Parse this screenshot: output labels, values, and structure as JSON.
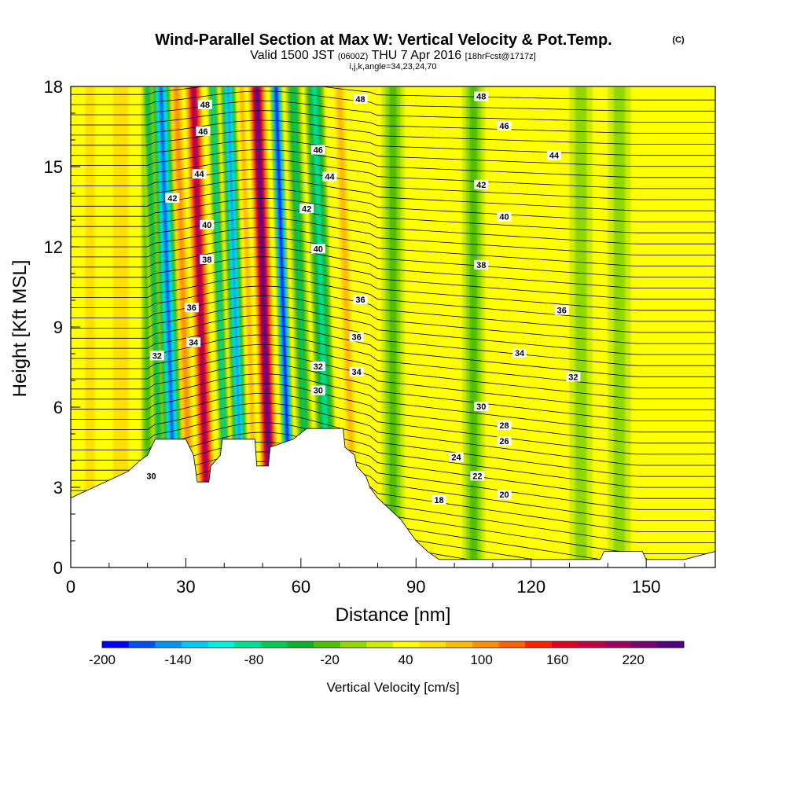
{
  "title": {
    "main": "Wind-Parallel Section at Max W: Vertical Velocity & Pot.Temp.",
    "mark": "(C)",
    "valid_prefix": "Valid 1500 JST",
    "valid_utc": "(0600Z)",
    "valid_date": "THU 7 Apr 2016",
    "fcst": "[18hrFcst@1717z]",
    "params": "i,j,k,angle=34,23,24,70"
  },
  "chart_data": {
    "type": "heatmap",
    "xlabel": "Distance [nm]",
    "ylabel": "Height [Kft MSL]",
    "xlim": [
      0,
      168
    ],
    "ylim": [
      0,
      18
    ],
    "x_ticks": [
      0,
      30,
      60,
      90,
      120,
      150
    ],
    "x_tick_labels": [
      "0",
      "30",
      "60",
      "90",
      "120",
      "150"
    ],
    "y_ticks": [
      0,
      3,
      6,
      9,
      12,
      15,
      18
    ],
    "y_tick_labels": [
      "0",
      "3",
      "6",
      "9",
      "12",
      "15",
      "18"
    ],
    "colorbar": {
      "label": "Vertical Velocity [cm/s]",
      "min": -200,
      "max": 240,
      "step": 20,
      "tick_labels": [
        "-200",
        "-140",
        "-80",
        "-20",
        "40",
        "100",
        "160",
        "220"
      ],
      "colors": [
        "#0000ff",
        "#0050f0",
        "#0096f0",
        "#00c8f0",
        "#00f0e0",
        "#00e090",
        "#00cc55",
        "#10b030",
        "#50c000",
        "#90d800",
        "#ccec00",
        "#ffff00",
        "#ffe000",
        "#ffbb00",
        "#ff9000",
        "#ff6000",
        "#ff2000",
        "#e00020",
        "#c00040",
        "#a00060",
        "#780070",
        "#500080"
      ]
    },
    "background_value": 20,
    "vertical_velocity_bands": [
      {
        "x": 5,
        "w": 2.5,
        "v": 50
      },
      {
        "x": 13,
        "w": 4,
        "v": 52
      },
      {
        "x": 20,
        "w": 1.5,
        "v": -25
      },
      {
        "x": 24,
        "w": 1.5,
        "v": -80
      },
      {
        "x": 27.5,
        "w": 2.5,
        "v": -165
      },
      {
        "x": 31.5,
        "w": 1.5,
        "v": 80
      },
      {
        "x": 36,
        "w": 2.5,
        "v": 190
      },
      {
        "x": 41,
        "w": 1.5,
        "v": -90
      },
      {
        "x": 45,
        "w": 2.2,
        "v": -150
      },
      {
        "x": 48.5,
        "w": 1.3,
        "v": 70
      },
      {
        "x": 52.5,
        "w": 2.5,
        "v": 235
      },
      {
        "x": 57.5,
        "w": 1.6,
        "v": -230
      },
      {
        "x": 62,
        "w": 2.2,
        "v": -70
      },
      {
        "x": 67.5,
        "w": 2.5,
        "v": -85
      },
      {
        "x": 74,
        "w": 2,
        "v": 70
      },
      {
        "x": 84,
        "w": 3,
        "v": -30
      },
      {
        "x": 105,
        "w": 3,
        "v": -30
      },
      {
        "x": 133,
        "w": 3,
        "v": -15
      },
      {
        "x": 143,
        "w": 3,
        "v": -15
      }
    ],
    "theta_contour_labels": [
      {
        "x": 21,
        "z": 3.4,
        "t": "30"
      },
      {
        "x": 22.5,
        "z": 7.9,
        "t": "32"
      },
      {
        "x": 32,
        "z": 8.4,
        "t": "34"
      },
      {
        "x": 31.5,
        "z": 9.7,
        "t": "36"
      },
      {
        "x": 35.5,
        "z": 11.5,
        "t": "38"
      },
      {
        "x": 35.5,
        "z": 12.8,
        "t": "40"
      },
      {
        "x": 26.5,
        "z": 13.8,
        "t": "42"
      },
      {
        "x": 33.5,
        "z": 14.7,
        "t": "44"
      },
      {
        "x": 34.5,
        "z": 16.3,
        "t": "46"
      },
      {
        "x": 35,
        "z": 17.3,
        "t": "48"
      },
      {
        "x": 64.5,
        "z": 6.6,
        "t": "30"
      },
      {
        "x": 64.5,
        "z": 7.5,
        "t": "32"
      },
      {
        "x": 74.5,
        "z": 7.3,
        "t": "34"
      },
      {
        "x": 74.5,
        "z": 8.6,
        "t": "36"
      },
      {
        "x": 75.5,
        "z": 10.0,
        "t": "36"
      },
      {
        "x": 64.5,
        "z": 11.9,
        "t": "40"
      },
      {
        "x": 61.5,
        "z": 13.4,
        "t": "42"
      },
      {
        "x": 67.5,
        "z": 14.6,
        "t": "44"
      },
      {
        "x": 64.5,
        "z": 15.6,
        "t": "46"
      },
      {
        "x": 75.5,
        "z": 17.5,
        "t": "48"
      },
      {
        "x": 96,
        "z": 2.5,
        "t": "18"
      },
      {
        "x": 113,
        "z": 2.7,
        "t": "20"
      },
      {
        "x": 106,
        "z": 3.4,
        "t": "22"
      },
      {
        "x": 100.5,
        "z": 4.1,
        "t": "24"
      },
      {
        "x": 113,
        "z": 4.7,
        "t": "26"
      },
      {
        "x": 113,
        "z": 5.3,
        "t": "28"
      },
      {
        "x": 107,
        "z": 6.0,
        "t": "30"
      },
      {
        "x": 131,
        "z": 7.1,
        "t": "32"
      },
      {
        "x": 117,
        "z": 8.0,
        "t": "34"
      },
      {
        "x": 128,
        "z": 9.6,
        "t": "36"
      },
      {
        "x": 107,
        "z": 11.3,
        "t": "38"
      },
      {
        "x": 113,
        "z": 13.1,
        "t": "40"
      },
      {
        "x": 107,
        "z": 14.3,
        "t": "42"
      },
      {
        "x": 126,
        "z": 15.4,
        "t": "44"
      },
      {
        "x": 113,
        "z": 16.5,
        "t": "46"
      },
      {
        "x": 107,
        "z": 17.6,
        "t": "48"
      }
    ],
    "terrain": [
      {
        "x": 0,
        "z": 2.6
      },
      {
        "x": 3,
        "z": 2.8
      },
      {
        "x": 6,
        "z": 3.0
      },
      {
        "x": 9,
        "z": 3.2
      },
      {
        "x": 12,
        "z": 3.4
      },
      {
        "x": 15,
        "z": 3.6
      },
      {
        "x": 18,
        "z": 4.0
      },
      {
        "x": 20,
        "z": 4.2
      },
      {
        "x": 22,
        "z": 4.8
      },
      {
        "x": 30,
        "z": 4.8
      },
      {
        "x": 32,
        "z": 4.2
      },
      {
        "x": 33,
        "z": 3.2
      },
      {
        "x": 36,
        "z": 3.2
      },
      {
        "x": 36.5,
        "z": 3.8
      },
      {
        "x": 39,
        "z": 4.2
      },
      {
        "x": 39.5,
        "z": 4.8
      },
      {
        "x": 48,
        "z": 4.8
      },
      {
        "x": 48.5,
        "z": 3.8
      },
      {
        "x": 51.5,
        "z": 3.8
      },
      {
        "x": 52,
        "z": 4.5
      },
      {
        "x": 58,
        "z": 4.8
      },
      {
        "x": 61.5,
        "z": 5.2
      },
      {
        "x": 71,
        "z": 5.2
      },
      {
        "x": 71.5,
        "z": 4.5
      },
      {
        "x": 74,
        "z": 4.2
      },
      {
        "x": 74.5,
        "z": 3.8
      },
      {
        "x": 77,
        "z": 3.4
      },
      {
        "x": 78,
        "z": 3.0
      },
      {
        "x": 80,
        "z": 2.6
      },
      {
        "x": 83,
        "z": 2.2
      },
      {
        "x": 86,
        "z": 1.8
      },
      {
        "x": 90,
        "z": 1.0
      },
      {
        "x": 93,
        "z": 0.6
      },
      {
        "x": 96,
        "z": 0.3
      },
      {
        "x": 138,
        "z": 0.3
      },
      {
        "x": 139,
        "z": 0.6
      },
      {
        "x": 149,
        "z": 0.6
      },
      {
        "x": 150,
        "z": 0.3
      },
      {
        "x": 160,
        "z": 0.3
      },
      {
        "x": 168,
        "z": 0.6
      }
    ]
  }
}
